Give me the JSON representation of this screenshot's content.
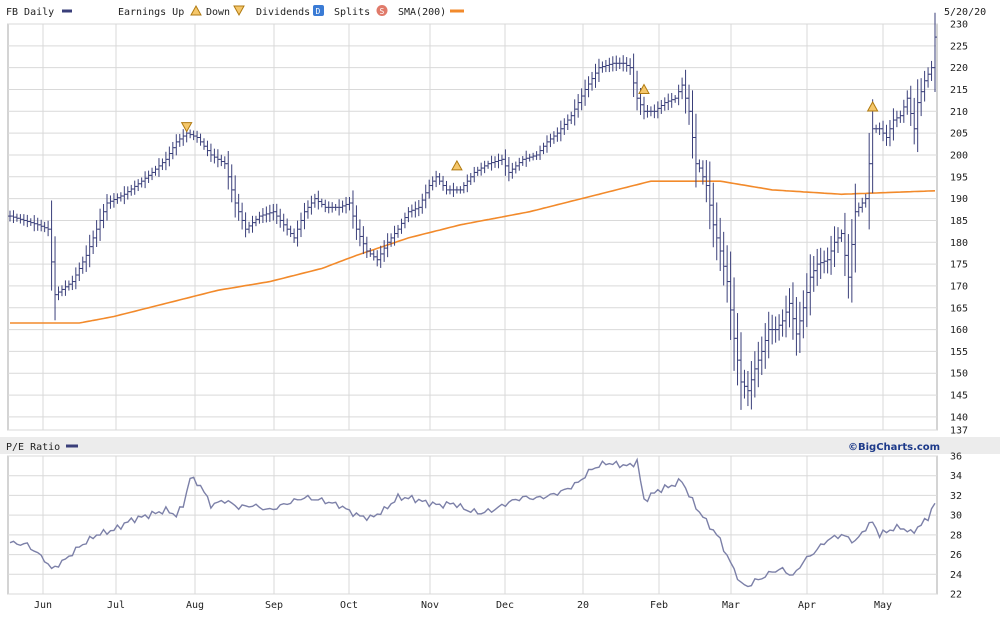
{
  "colors": {
    "price": "#3a3f7a",
    "sma": "#f28a2b",
    "pe": "#7c80a8",
    "grid": "#d9d9d9",
    "marker_fill": "#f5c76b",
    "marker_stroke": "#b07a10",
    "dividend_badge": "#3a7bd5",
    "split_badge": "#e07a6a",
    "border": "#aaaaaa"
  },
  "header": {
    "symbol_label": "FB Daily",
    "earnings_up_label": "Earnings Up",
    "down_label": "Down",
    "dividends_label": "Dividends",
    "dividend_badge": "D",
    "splits_label": "Splits",
    "split_badge": "S",
    "sma_label": "SMA(200)",
    "date_label": "5/20/20"
  },
  "pe_panel": {
    "title": "P/E Ratio",
    "brand": "©BigCharts.com"
  },
  "chart_data": [
    {
      "type": "line",
      "subtype": "ohlc-bars",
      "title": "FB Daily",
      "x_labels": [
        "Jun",
        "Jul",
        "Aug",
        "Sep",
        "Oct",
        "Nov",
        "Dec",
        "20",
        "Feb",
        "Mar",
        "Apr",
        "May"
      ],
      "y_ticks": [
        137,
        140,
        145,
        150,
        155,
        160,
        165,
        170,
        175,
        180,
        185,
        190,
        195,
        200,
        205,
        210,
        215,
        220,
        225,
        230
      ],
      "ylim": [
        137,
        230
      ],
      "grid": true,
      "series": [
        {
          "name": "FB Daily",
          "anchors": [
            [
              0,
              186
            ],
            [
              4,
              185
            ],
            [
              8,
              184
            ],
            [
              11,
              183
            ],
            [
              13,
              168
            ],
            [
              18,
              171
            ],
            [
              22,
              177
            ],
            [
              25,
              183
            ],
            [
              28,
              189
            ],
            [
              33,
              191
            ],
            [
              38,
              194
            ],
            [
              41,
              196
            ],
            [
              45,
              199
            ],
            [
              48,
              203
            ],
            [
              51,
              205
            ],
            [
              54,
              204
            ],
            [
              56,
              202
            ],
            [
              58,
              200
            ],
            [
              62,
              198
            ],
            [
              65,
              189
            ],
            [
              68,
              183
            ],
            [
              72,
              186
            ],
            [
              76,
              187
            ],
            [
              79,
              184
            ],
            [
              82,
              181
            ],
            [
              85,
              187
            ],
            [
              88,
              190
            ],
            [
              91,
              188
            ],
            [
              95,
              188
            ],
            [
              98,
              189
            ],
            [
              100,
              183
            ],
            [
              103,
              178
            ],
            [
              106,
              176
            ],
            [
              109,
              180
            ],
            [
              112,
              183
            ],
            [
              115,
              187
            ],
            [
              118,
              188
            ],
            [
              121,
              193
            ],
            [
              123,
              195
            ],
            [
              126,
              192
            ],
            [
              130,
              192
            ],
            [
              134,
              196
            ],
            [
              138,
              198
            ],
            [
              142,
              199
            ],
            [
              144,
              196
            ],
            [
              148,
              199
            ],
            [
              152,
              200
            ],
            [
              155,
              203
            ],
            [
              158,
              205
            ],
            [
              162,
              209
            ],
            [
              166,
              215
            ],
            [
              170,
              220
            ],
            [
              174,
              221
            ],
            [
              177,
              221
            ],
            [
              179,
              220
            ],
            [
              181,
              213
            ],
            [
              183,
              210
            ],
            [
              186,
              210
            ],
            [
              189,
              212
            ],
            [
              192,
              213
            ],
            [
              194,
              216
            ],
            [
              196,
              210
            ],
            [
              198,
              198
            ],
            [
              199,
              197
            ],
            [
              201,
              193
            ],
            [
              203,
              184
            ],
            [
              205,
              178
            ],
            [
              207,
              171
            ],
            [
              209,
              158
            ],
            [
              211,
              148
            ],
            [
              213,
              146
            ],
            [
              215,
              151
            ],
            [
              217,
              155
            ],
            [
              219,
              160
            ],
            [
              221,
              160
            ],
            [
              223,
              162
            ],
            [
              225,
              166
            ],
            [
              227,
              159
            ],
            [
              229,
              165
            ],
            [
              231,
              172
            ],
            [
              233,
              175
            ],
            [
              236,
              176
            ],
            [
              238,
              180
            ],
            [
              240,
              182
            ],
            [
              242,
              172
            ],
            [
              244,
              187
            ],
            [
              247,
              190
            ],
            [
              249,
              206
            ],
            [
              251,
              206
            ],
            [
              253,
              204
            ],
            [
              255,
              208
            ],
            [
              257,
              209
            ],
            [
              259,
              213
            ],
            [
              261,
              206
            ],
            [
              262,
              212
            ],
            [
              264,
              217
            ],
            [
              266,
              220
            ],
            [
              267,
              227
            ]
          ],
          "ohlc_ranges": "daily high/low bars drawn around the close line"
        },
        {
          "name": "SMA(200)",
          "anchors": [
            [
              0,
              161.5
            ],
            [
              20,
              161.5
            ],
            [
              30,
              163
            ],
            [
              45,
              166
            ],
            [
              60,
              169
            ],
            [
              75,
              171
            ],
            [
              90,
              174
            ],
            [
              100,
              177
            ],
            [
              115,
              181
            ],
            [
              130,
              184
            ],
            [
              150,
              187
            ],
            [
              165,
              190
            ],
            [
              185,
              194
            ],
            [
              205,
              194
            ],
            [
              220,
              192
            ],
            [
              240,
              191
            ],
            [
              267,
              191.8
            ]
          ]
        }
      ],
      "earnings_markers": [
        {
          "index": 51,
          "kind": "down",
          "y": 206.5
        },
        {
          "index": 129,
          "kind": "up",
          "y": 197.5
        },
        {
          "index": 183,
          "kind": "up",
          "y": 215
        },
        {
          "index": 249,
          "kind": "up",
          "y": 211
        }
      ],
      "total_points": 268
    },
    {
      "type": "line",
      "title": "P/E Ratio",
      "y_ticks": [
        22,
        24,
        26,
        28,
        30,
        32,
        34,
        36
      ],
      "ylim": [
        22,
        36
      ],
      "grid": true,
      "series": [
        {
          "name": "P/E Ratio",
          "anchors": [
            [
              0,
              27.2
            ],
            [
              5,
              27
            ],
            [
              10,
              25.5
            ],
            [
              12,
              24.5
            ],
            [
              16,
              25.5
            ],
            [
              20,
              26.8
            ],
            [
              25,
              28
            ],
            [
              30,
              28.5
            ],
            [
              35,
              29.5
            ],
            [
              40,
              30
            ],
            [
              45,
              30.5
            ],
            [
              48,
              30
            ],
            [
              50,
              31
            ],
            [
              52,
              33.8
            ],
            [
              55,
              33
            ],
            [
              58,
              31
            ],
            [
              62,
              31.5
            ],
            [
              66,
              30.8
            ],
            [
              70,
              31
            ],
            [
              75,
              30.5
            ],
            [
              80,
              31.2
            ],
            [
              85,
              31.8
            ],
            [
              90,
              31.5
            ],
            [
              95,
              31
            ],
            [
              100,
              30
            ],
            [
              104,
              29.7
            ],
            [
              108,
              30.5
            ],
            [
              112,
              31.8
            ],
            [
              116,
              31.7
            ],
            [
              120,
              31.3
            ],
            [
              124,
              31
            ],
            [
              128,
              31.2
            ],
            [
              132,
              30.5
            ],
            [
              136,
              30.2
            ],
            [
              140,
              30.6
            ],
            [
              144,
              31.3
            ],
            [
              148,
              31.8
            ],
            [
              152,
              31.7
            ],
            [
              156,
              32
            ],
            [
              160,
              32.5
            ],
            [
              164,
              33.3
            ],
            [
              168,
              34.7
            ],
            [
              172,
              35.3
            ],
            [
              176,
              35.1
            ],
            [
              179,
              35
            ],
            [
              181,
              35.5
            ],
            [
              183,
              31.5
            ],
            [
              187,
              32.5
            ],
            [
              191,
              33
            ],
            [
              194,
              33.5
            ],
            [
              196,
              32
            ],
            [
              199,
              30.3
            ],
            [
              202,
              28.9
            ],
            [
              205,
              27.5
            ],
            [
              207,
              25.8
            ],
            [
              209,
              24.5
            ],
            [
              211,
              23
            ],
            [
              213,
              22.8
            ],
            [
              215,
              23.3
            ],
            [
              218,
              23.8
            ],
            [
              220,
              24.3
            ],
            [
              223,
              24.5
            ],
            [
              226,
              23.8
            ],
            [
              229,
              25.3
            ],
            [
              232,
              26.2
            ],
            [
              236,
              27.5
            ],
            [
              240,
              28
            ],
            [
              244,
              27.3
            ],
            [
              247,
              28.7
            ],
            [
              249,
              29.3
            ],
            [
              251,
              28
            ],
            [
              254,
              28.5
            ],
            [
              257,
              28.8
            ],
            [
              260,
              28.2
            ],
            [
              263,
              29
            ],
            [
              265,
              29.8
            ],
            [
              267,
              31.2
            ]
          ]
        }
      ]
    }
  ]
}
